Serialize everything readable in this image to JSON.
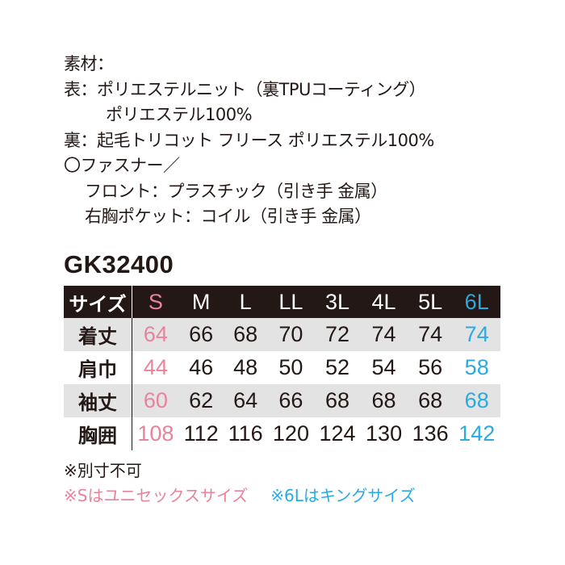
{
  "materials": {
    "heading": "素材：",
    "outer_line1": "表：ポリエステルニット（裏TPUコーティング）",
    "outer_line2": "ポリエステル100%",
    "lining": "裏：起毛トリコット フリース ポリエステル100%",
    "fastener_heading": "〇ファスナー／",
    "fastener_front": "フロント：プラスチック（引き手 金属）",
    "fastener_pocket": "右胸ポケット：コイル（引き手 金属）"
  },
  "model": "GK32400",
  "size_table": {
    "header_label": "サイズ",
    "sizes": [
      "S",
      "M",
      "L",
      "LL",
      "3L",
      "4L",
      "5L",
      "6L"
    ],
    "rows": [
      {
        "label": "着丈",
        "values": [
          "64",
          "66",
          "68",
          "70",
          "72",
          "74",
          "74",
          "74"
        ]
      },
      {
        "label": "肩巾",
        "values": [
          "44",
          "46",
          "48",
          "50",
          "52",
          "54",
          "56",
          "58"
        ]
      },
      {
        "label": "袖丈",
        "values": [
          "60",
          "62",
          "64",
          "66",
          "68",
          "68",
          "68",
          "68"
        ]
      },
      {
        "label": "胸囲",
        "values": [
          "108",
          "112",
          "116",
          "120",
          "124",
          "130",
          "136",
          "142"
        ]
      }
    ]
  },
  "notes": {
    "no_custom": "※別寸不可",
    "s_note": "※Sはユニセックスサイズ",
    "6l_note": "※6Lはキングサイズ"
  },
  "colors": {
    "s_size": "#e8839b",
    "6l_size": "#29abe2",
    "header_bg": "#231815",
    "stripe": "#e3e3e3"
  }
}
